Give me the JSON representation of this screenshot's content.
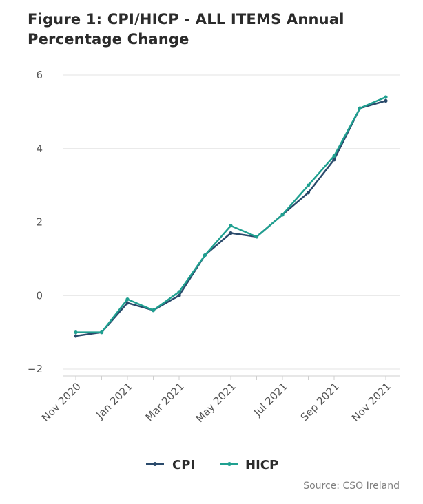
{
  "title": "Figure 1: CPI/HICP - ALL ITEMS Annual Percentage Change",
  "source": "Source: CSO Ireland",
  "colors": {
    "CPI": "#2a4a6b",
    "HICP": "#1fa090",
    "grid": "#e3e3e3"
  },
  "chart_data": {
    "type": "line",
    "title": "Figure 1: CPI/HICP - ALL ITEMS Annual Percentage Change",
    "x": [
      "Nov 2020",
      "Dec 2020",
      "Jan 2021",
      "Feb 2021",
      "Mar 2021",
      "Apr 2021",
      "May 2021",
      "Jun 2021",
      "Jul 2021",
      "Aug 2021",
      "Sep 2021",
      "Oct 2021",
      "Nov 2021"
    ],
    "x_tick_labels": [
      "Nov 2020",
      "Jan 2021",
      "Mar 2021",
      "May 2021",
      "Jul 2021",
      "Sep 2021",
      "Nov 2021"
    ],
    "ylim": [
      -2,
      6
    ],
    "y_ticks": [
      -2,
      0,
      2,
      4,
      6
    ],
    "y_tick_labels": [
      "−2",
      "0",
      "2",
      "4",
      "6"
    ],
    "grid": true,
    "legend": "bottom-center",
    "series": [
      {
        "name": "CPI",
        "values": [
          -1.1,
          -1.0,
          -0.2,
          -0.4,
          0.0,
          1.1,
          1.7,
          1.6,
          2.2,
          2.8,
          3.7,
          5.1,
          5.3
        ]
      },
      {
        "name": "HICP",
        "values": [
          -1.0,
          -1.0,
          -0.1,
          -0.4,
          0.1,
          1.1,
          1.9,
          1.6,
          2.2,
          3.0,
          3.8,
          5.1,
          5.4
        ]
      }
    ]
  }
}
